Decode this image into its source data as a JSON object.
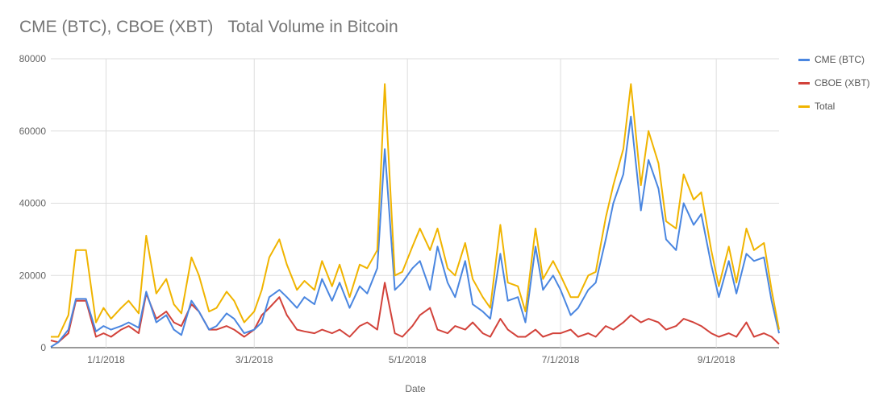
{
  "chart_data": {
    "type": "line",
    "title": "CME (BTC), CBOE (XBT)",
    "subtitle": "Total Volume in Bitcoin",
    "xlabel": "Date",
    "ylabel": "",
    "ylim": [
      0,
      80000
    ],
    "yticks": [
      0,
      20000,
      40000,
      60000,
      80000
    ],
    "yticklabels": [
      "0",
      "20000",
      "40000",
      "60000",
      "80000"
    ],
    "xrange": [
      "2017-12-10",
      "2018-09-26"
    ],
    "xticks": [
      {
        "label": "1/1/2018",
        "date": "2018-01-01"
      },
      {
        "label": "3/1/2018",
        "date": "2018-03-01"
      },
      {
        "label": "5/1/2018",
        "date": "2018-05-01"
      },
      {
        "label": "7/1/2018",
        "date": "2018-07-01"
      },
      {
        "label": "9/1/2018",
        "date": "2018-09-01"
      }
    ],
    "grid": true,
    "legend_position": "right",
    "x": [
      "2017-12-10",
      "2017-12-13",
      "2017-12-17",
      "2017-12-20",
      "2017-12-24",
      "2017-12-28",
      "2017-12-31",
      "2018-01-03",
      "2018-01-07",
      "2018-01-10",
      "2018-01-14",
      "2018-01-17",
      "2018-01-21",
      "2018-01-25",
      "2018-01-28",
      "2018-01-31",
      "2018-02-04",
      "2018-02-07",
      "2018-02-11",
      "2018-02-14",
      "2018-02-18",
      "2018-02-21",
      "2018-02-25",
      "2018-03-01",
      "2018-03-04",
      "2018-03-07",
      "2018-03-11",
      "2018-03-14",
      "2018-03-18",
      "2018-03-21",
      "2018-03-25",
      "2018-03-28",
      "2018-04-01",
      "2018-04-04",
      "2018-04-08",
      "2018-04-12",
      "2018-04-15",
      "2018-04-19",
      "2018-04-22",
      "2018-04-26",
      "2018-04-29",
      "2018-05-03",
      "2018-05-06",
      "2018-05-10",
      "2018-05-13",
      "2018-05-17",
      "2018-05-20",
      "2018-05-24",
      "2018-05-27",
      "2018-05-31",
      "2018-06-03",
      "2018-06-07",
      "2018-06-10",
      "2018-06-14",
      "2018-06-17",
      "2018-06-21",
      "2018-06-24",
      "2018-06-28",
      "2018-07-01",
      "2018-07-05",
      "2018-07-08",
      "2018-07-12",
      "2018-07-15",
      "2018-07-19",
      "2018-07-22",
      "2018-07-26",
      "2018-07-29",
      "2018-08-02",
      "2018-08-05",
      "2018-08-09",
      "2018-08-12",
      "2018-08-16",
      "2018-08-19",
      "2018-08-23",
      "2018-08-26",
      "2018-08-30",
      "2018-09-02",
      "2018-09-06",
      "2018-09-09",
      "2018-09-13",
      "2018-09-16",
      "2018-09-20",
      "2018-09-23",
      "2018-09-26"
    ],
    "series": [
      {
        "name": "CME (BTC)",
        "color": "#4a86e0",
        "values": [
          200,
          1500,
          5000,
          13500,
          13500,
          4500,
          6000,
          5000,
          6000,
          7000,
          5500,
          15500,
          7000,
          9000,
          5000,
          3500,
          13000,
          10000,
          5000,
          6000,
          9500,
          8000,
          4000,
          5000,
          7000,
          14000,
          16000,
          14000,
          11000,
          14000,
          12000,
          19000,
          13000,
          18000,
          11000,
          17000,
          15000,
          22000,
          55000,
          16000,
          18000,
          22000,
          24000,
          16000,
          28000,
          18000,
          14000,
          24000,
          12000,
          10000,
          8000,
          26000,
          13000,
          14000,
          7000,
          28000,
          16000,
          20000,
          16000,
          9000,
          11000,
          16000,
          18000,
          30000,
          40000,
          48000,
          64000,
          38000,
          52000,
          44000,
          30000,
          27000,
          40000,
          34000,
          37000,
          23000,
          14000,
          24000,
          15000,
          26000,
          24000,
          25000,
          13000,
          4000
        ]
      },
      {
        "name": "CBOE (XBT)",
        "color": "#d2423a",
        "values": [
          2000,
          1500,
          4000,
          13000,
          13000,
          3000,
          4000,
          3000,
          5000,
          6000,
          4000,
          15000,
          8000,
          10000,
          7000,
          6000,
          12000,
          10000,
          5000,
          5000,
          6000,
          5000,
          3000,
          5000,
          9000,
          11000,
          14000,
          9000,
          5000,
          4500,
          4000,
          5000,
          4000,
          5000,
          3000,
          6000,
          7000,
          5000,
          18000,
          4000,
          3000,
          6000,
          9000,
          11000,
          5000,
          4000,
          6000,
          5000,
          7000,
          4000,
          3000,
          8000,
          5000,
          3000,
          3000,
          5000,
          3000,
          4000,
          4000,
          5000,
          3000,
          4000,
          3000,
          6000,
          5000,
          7000,
          9000,
          7000,
          8000,
          7000,
          5000,
          6000,
          8000,
          7000,
          6000,
          4000,
          3000,
          4000,
          3000,
          7000,
          3000,
          4000,
          3000,
          1000
        ]
      },
      {
        "name": "Total",
        "color": "#f0b400",
        "values": [
          3000,
          3000,
          9000,
          27000,
          27000,
          7000,
          11000,
          8000,
          11000,
          13000,
          9500,
          31000,
          15000,
          19000,
          12000,
          9500,
          25000,
          20000,
          10000,
          11000,
          15500,
          13000,
          7000,
          10000,
          16000,
          25000,
          30000,
          23000,
          16000,
          18500,
          16000,
          24000,
          17000,
          23000,
          14000,
          23000,
          22000,
          27000,
          73000,
          20000,
          21000,
          28000,
          33000,
          27000,
          33000,
          22000,
          20000,
          29000,
          19000,
          14000,
          11000,
          34000,
          18000,
          17000,
          10000,
          33000,
          19000,
          24000,
          20000,
          14000,
          14000,
          20000,
          21000,
          36000,
          45000,
          55000,
          73000,
          45000,
          60000,
          51000,
          35000,
          33000,
          48000,
          41000,
          43000,
          27000,
          17000,
          28000,
          18000,
          33000,
          27000,
          29000,
          16000,
          5000
        ]
      }
    ]
  }
}
